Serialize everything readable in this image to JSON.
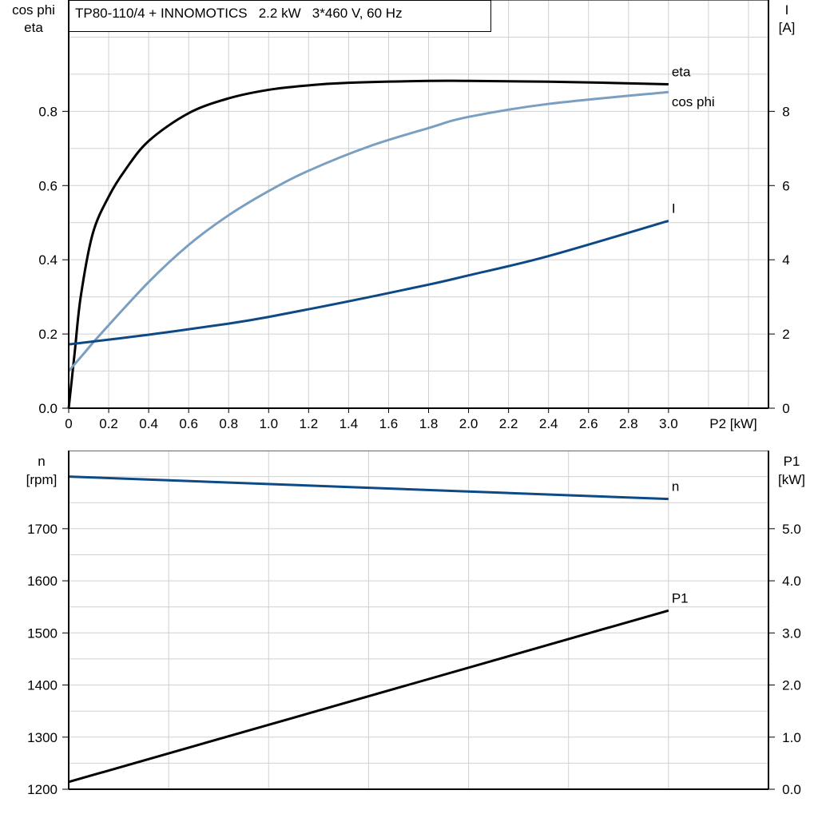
{
  "title": "TP80-110/4 + INNOMOTICS   2.2 kW   3*460 V, 60 Hz",
  "colors": {
    "eta": "#000000",
    "cos_phi": "#7a9fc0",
    "I": "#0d4a85",
    "n": "#0d4a85",
    "P1": "#000000",
    "grid": "#d0d0d0"
  },
  "chart_data": [
    {
      "type": "line",
      "xlabel": "P2 [kW]",
      "ylabel_left": [
        "cos phi",
        "eta"
      ],
      "ylabel_right": [
        "I",
        "[A]"
      ],
      "xlim": [
        0,
        3.5
      ],
      "ylim_left": [
        0,
        1.1
      ],
      "ylim_right": [
        0,
        11
      ],
      "grid": true,
      "x_ticks": [
        "0",
        "0.2",
        "0.4",
        "0.6",
        "0.8",
        "1.0",
        "1.2",
        "1.4",
        "1.6",
        "1.8",
        "2.0",
        "2.2",
        "2.4",
        "2.6",
        "2.8",
        "3.0"
      ],
      "y_ticks_left": [
        "0.0",
        "0.2",
        "0.4",
        "0.6",
        "0.8"
      ],
      "y_ticks_right": [
        "0",
        "2",
        "4",
        "6",
        "8"
      ],
      "series": [
        {
          "name": "eta",
          "axis": "left",
          "x": [
            0,
            0.03,
            0.06,
            0.12,
            0.2,
            0.28,
            0.4,
            0.6,
            0.8,
            1.0,
            1.2,
            1.4,
            1.8,
            2.0,
            2.4,
            3.0
          ],
          "y": [
            0,
            0.15,
            0.3,
            0.47,
            0.57,
            0.64,
            0.72,
            0.795,
            0.835,
            0.858,
            0.87,
            0.877,
            0.882,
            0.882,
            0.88,
            0.873
          ]
        },
        {
          "name": "cos phi",
          "axis": "left",
          "x": [
            0,
            0.08,
            0.16,
            0.4,
            0.6,
            0.8,
            1.0,
            1.2,
            1.5,
            1.8,
            2.0,
            2.4,
            3.0
          ],
          "y": [
            0.1,
            0.15,
            0.2,
            0.34,
            0.44,
            0.52,
            0.585,
            0.64,
            0.705,
            0.755,
            0.785,
            0.82,
            0.852
          ]
        },
        {
          "name": "I",
          "axis": "right",
          "x": [
            0,
            0.4,
            0.8,
            1.0,
            1.4,
            1.8,
            2.0,
            2.4,
            3.0
          ],
          "y": [
            1.72,
            1.98,
            2.28,
            2.46,
            2.88,
            3.33,
            3.58,
            4.1,
            5.05
          ]
        }
      ]
    },
    {
      "type": "line",
      "ylabel_left": [
        "n",
        "[rpm]"
      ],
      "ylabel_right": [
        "P1",
        "[kW]"
      ],
      "xlim": [
        0,
        3.5
      ],
      "ylim_left": [
        1200,
        1850
      ],
      "ylim_right": [
        0,
        6.5
      ],
      "grid": true,
      "y_ticks_left": [
        "1200",
        "1300",
        "1400",
        "1500",
        "1600",
        "1700"
      ],
      "y_ticks_right": [
        "0.0",
        "1.0",
        "2.0",
        "3.0",
        "4.0",
        "5.0"
      ],
      "series": [
        {
          "name": "n",
          "axis": "left",
          "x": [
            0,
            3.0
          ],
          "y": [
            1800,
            1757
          ]
        },
        {
          "name": "P1",
          "axis": "right",
          "x": [
            0,
            3.0
          ],
          "y": [
            0.14,
            3.43
          ]
        }
      ]
    }
  ]
}
